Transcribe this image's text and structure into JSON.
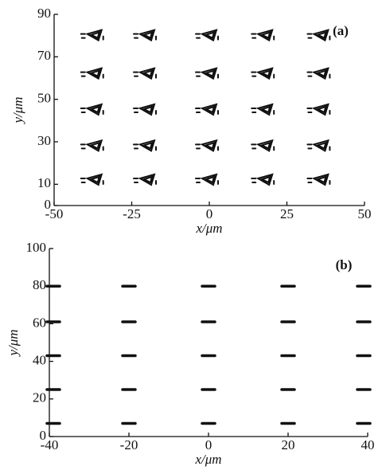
{
  "chart_data": [
    {
      "type": "scatter",
      "annotation": "(a)",
      "xlabel": "x/μm",
      "ylabel": "y/μm",
      "marker": "triangle",
      "color": "#111111",
      "xlim": [
        -50,
        50
      ],
      "ylim": [
        0,
        90
      ],
      "xticks": [
        -50,
        -25,
        0,
        25,
        50
      ],
      "yticks": [
        0,
        10,
        30,
        50,
        70,
        90
      ],
      "x": [
        -37,
        -20,
        0,
        18,
        36,
        -37,
        -20,
        0,
        18,
        36,
        -37,
        -20,
        0,
        18,
        36,
        -37,
        -20,
        0,
        18,
        36,
        -37,
        -20,
        0,
        18,
        36
      ],
      "y": [
        80,
        80,
        80,
        80,
        80,
        62,
        62,
        62,
        62,
        62,
        45,
        45,
        45,
        45,
        45,
        28,
        28,
        28,
        28,
        28,
        12,
        12,
        12,
        12,
        12
      ]
    },
    {
      "type": "scatter",
      "annotation": "(b)",
      "xlabel": "x/μm",
      "ylabel": "y/μm",
      "marker": "dash",
      "color": "#111111",
      "xlim": [
        -40,
        40
      ],
      "ylim": [
        0,
        100
      ],
      "xticks": [
        -40,
        -20,
        0,
        20,
        40
      ],
      "yticks": [
        0,
        20,
        40,
        60,
        80,
        100
      ],
      "x": [
        -39,
        -20,
        0,
        20,
        39,
        -39,
        -20,
        0,
        20,
        39,
        -39,
        -20,
        0,
        20,
        39,
        -39,
        -20,
        0,
        20,
        39,
        -39,
        -20,
        0,
        20,
        39
      ],
      "y": [
        80,
        80,
        80,
        80,
        80,
        61,
        61,
        61,
        61,
        61,
        43,
        43,
        43,
        43,
        43,
        25,
        25,
        25,
        25,
        25,
        7,
        7,
        7,
        7,
        7
      ]
    }
  ]
}
